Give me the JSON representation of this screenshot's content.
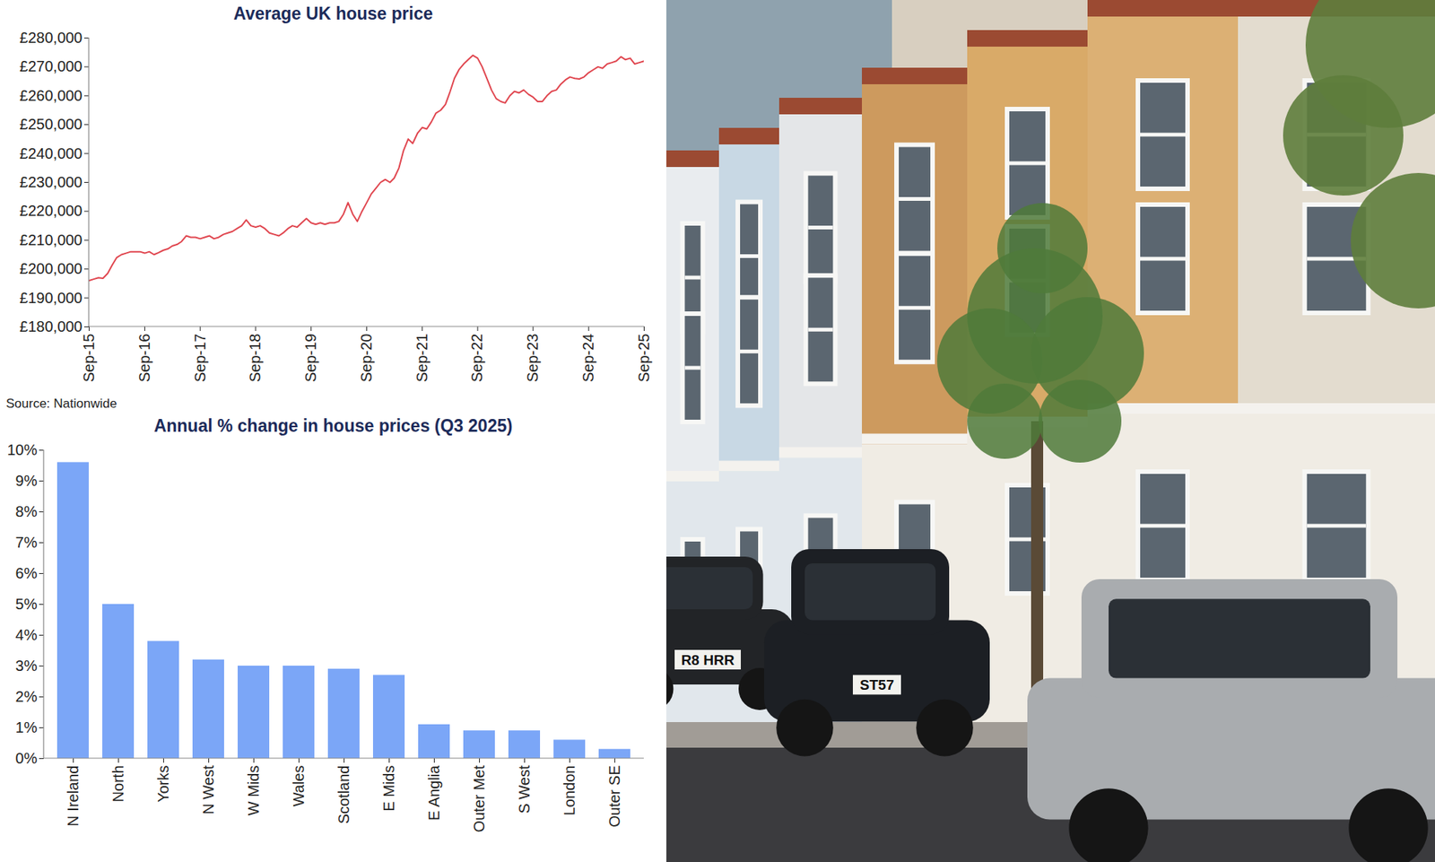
{
  "chart_data": [
    {
      "type": "line",
      "title": "Average UK house price",
      "source": "Source: Nationwide",
      "color": "#e0464f",
      "grid": false,
      "x": [
        "2015-09",
        "2015-10",
        "2015-11",
        "2015-12",
        "2016-01",
        "2016-02",
        "2016-03",
        "2016-04",
        "2016-05",
        "2016-06",
        "2016-07",
        "2016-08",
        "2016-09",
        "2016-10",
        "2016-11",
        "2016-12",
        "2017-01",
        "2017-02",
        "2017-03",
        "2017-04",
        "2017-05",
        "2017-06",
        "2017-07",
        "2017-08",
        "2017-09",
        "2017-10",
        "2017-11",
        "2017-12",
        "2018-01",
        "2018-02",
        "2018-03",
        "2018-04",
        "2018-05",
        "2018-06",
        "2018-07",
        "2018-08",
        "2018-09",
        "2018-10",
        "2018-11",
        "2018-12",
        "2019-01",
        "2019-02",
        "2019-03",
        "2019-04",
        "2019-05",
        "2019-06",
        "2019-07",
        "2019-08",
        "2019-09",
        "2019-10",
        "2019-11",
        "2019-12",
        "2020-01",
        "2020-02",
        "2020-03",
        "2020-04",
        "2020-05",
        "2020-06",
        "2020-07",
        "2020-08",
        "2020-09",
        "2020-10",
        "2020-11",
        "2020-12",
        "2021-01",
        "2021-02",
        "2021-03",
        "2021-04",
        "2021-05",
        "2021-06",
        "2021-07",
        "2021-08",
        "2021-09",
        "2021-10",
        "2021-11",
        "2021-12",
        "2022-01",
        "2022-02",
        "2022-03",
        "2022-04",
        "2022-05",
        "2022-06",
        "2022-07",
        "2022-08",
        "2022-09",
        "2022-10",
        "2022-11",
        "2022-12",
        "2023-01",
        "2023-02",
        "2023-03",
        "2023-04",
        "2023-05",
        "2023-06",
        "2023-07",
        "2023-08",
        "2023-09",
        "2023-10",
        "2023-11",
        "2023-12",
        "2024-01",
        "2024-02",
        "2024-03",
        "2024-04",
        "2024-05",
        "2024-06",
        "2024-07",
        "2024-08",
        "2024-09",
        "2024-10",
        "2024-11",
        "2024-12",
        "2025-01",
        "2025-02",
        "2025-03",
        "2025-04",
        "2025-05",
        "2025-06",
        "2025-07",
        "2025-08",
        "2025-09"
      ],
      "values": [
        196000,
        196500,
        197000,
        196800,
        198500,
        201500,
        204000,
        205000,
        205500,
        206000,
        206000,
        206000,
        205500,
        206000,
        205000,
        205700,
        206500,
        207000,
        208000,
        208500,
        209500,
        211500,
        211000,
        211000,
        210500,
        211000,
        211500,
        210500,
        211000,
        212000,
        212500,
        213000,
        214000,
        215000,
        217000,
        215000,
        214500,
        215000,
        214000,
        212500,
        212000,
        211500,
        212500,
        214000,
        215000,
        214500,
        216000,
        217500,
        216000,
        215500,
        216000,
        215500,
        216000,
        216000,
        216500,
        219000,
        223000,
        219000,
        216500,
        220000,
        223000,
        226000,
        228000,
        230000,
        231000,
        230000,
        231500,
        235000,
        241000,
        245000,
        243500,
        247000,
        249000,
        248500,
        251000,
        254000,
        255000,
        257000,
        261000,
        266000,
        269000,
        271000,
        272500,
        274000,
        273000,
        270000,
        266000,
        262000,
        259000,
        258000,
        257500,
        260000,
        261500,
        261000,
        262000,
        260500,
        259500,
        258000,
        258000,
        260000,
        261500,
        262000,
        264000,
        265500,
        266500,
        266000,
        265800,
        266500,
        268000,
        269000,
        270000,
        269500,
        271000,
        271500,
        272000,
        273500,
        272500,
        273000,
        271000,
        271500,
        272000
      ],
      "xlim": [
        "2015-09",
        "2025-09"
      ],
      "xticks": [
        {
          "value": "2015-09",
          "label": "Sep-15"
        },
        {
          "value": "2016-09",
          "label": "Sep-16"
        },
        {
          "value": "2017-09",
          "label": "Sep-17"
        },
        {
          "value": "2018-09",
          "label": "Sep-18"
        },
        {
          "value": "2019-09",
          "label": "Sep-19"
        },
        {
          "value": "2020-09",
          "label": "Sep-20"
        },
        {
          "value": "2021-09",
          "label": "Sep-21"
        },
        {
          "value": "2022-09",
          "label": "Sep-22"
        },
        {
          "value": "2023-09",
          "label": "Sep-23"
        },
        {
          "value": "2024-09",
          "label": "Sep-24"
        },
        {
          "value": "2025-09",
          "label": "Sep-25"
        }
      ],
      "ylim": [
        180000,
        280000
      ],
      "yticks": [
        {
          "value": 180000,
          "label": "£180,000"
        },
        {
          "value": 190000,
          "label": "£190,000"
        },
        {
          "value": 200000,
          "label": "£200,000"
        },
        {
          "value": 210000,
          "label": "£210,000"
        },
        {
          "value": 220000,
          "label": "£220,000"
        },
        {
          "value": 230000,
          "label": "£230,000"
        },
        {
          "value": 240000,
          "label": "£240,000"
        },
        {
          "value": 250000,
          "label": "£250,000"
        },
        {
          "value": 260000,
          "label": "£260,000"
        },
        {
          "value": 270000,
          "label": "£270,000"
        },
        {
          "value": 280000,
          "label": "£280,000"
        }
      ]
    },
    {
      "type": "bar",
      "title": "Annual % change in house prices (Q3 2025)",
      "color": "#7ba6f7",
      "grid": false,
      "categories": [
        "N Ireland",
        "North",
        "Yorks",
        "N West",
        "W Mids",
        "Wales",
        "Scotland",
        "E Mids",
        "E Anglia",
        "Outer Met",
        "S West",
        "London",
        "Outer SE"
      ],
      "values": [
        9.6,
        5.0,
        3.8,
        3.2,
        3.0,
        3.0,
        2.9,
        2.7,
        1.1,
        0.9,
        0.9,
        0.6,
        0.3
      ],
      "ylim": [
        0,
        10
      ],
      "yticks": [
        {
          "value": 0,
          "label": "0%"
        },
        {
          "value": 1,
          "label": "1%"
        },
        {
          "value": 2,
          "label": "2%"
        },
        {
          "value": 3,
          "label": "3%"
        },
        {
          "value": 4,
          "label": "4%"
        },
        {
          "value": 5,
          "label": "5%"
        },
        {
          "value": 6,
          "label": "6%"
        },
        {
          "value": 7,
          "label": "7%"
        },
        {
          "value": 8,
          "label": "8%"
        },
        {
          "value": 9,
          "label": "9%"
        },
        {
          "value": 10,
          "label": "10%"
        }
      ]
    }
  ],
  "photo": {
    "texts": [
      "R8 HRR",
      "ST57"
    ]
  }
}
